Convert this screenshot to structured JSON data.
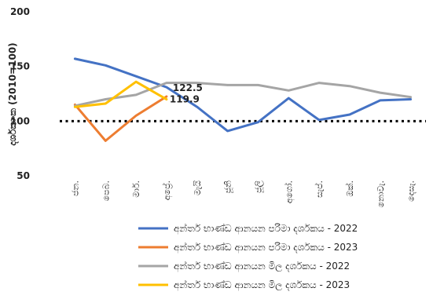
{
  "chart_data": {
    "type": "line",
    "title": "",
    "xlabel": "",
    "ylabel": "දර්ශකාංක (2010=100)",
    "ylim": [
      50,
      200
    ],
    "yticks": [
      50,
      100,
      150,
      200
    ],
    "grid": false,
    "legend_placement": "bottom",
    "categories": [
      "ජන.",
      "පෙබ.",
      "මාර්.",
      "අප්‍රේ.",
      "මැයි",
      "ජූනි",
      "ජූලි",
      "අගෝ.",
      "සැප්.",
      "ඔක්.",
      "නොවැ.",
      "දෙසැ."
    ],
    "series": [
      {
        "name": "අන්තර් භාණ්ඩ ආනයන පරිමා දර්ශකය - 2022",
        "color": "#4472C4",
        "values": [
          157,
          151,
          141,
          131,
          113,
          91,
          99,
          121,
          101,
          106,
          119,
          120
        ]
      },
      {
        "name": "අන්තර් භාණ්ඩ ආනයන පරිමා දර්ශකය - 2023",
        "color": "#ED7D31",
        "values": [
          115,
          82,
          105,
          122.5,
          null,
          null,
          null,
          null,
          null,
          null,
          null,
          null
        ]
      },
      {
        "name": "අන්තර් භාණ්ඩ ආනයන මිල දර්ශකය - 2022",
        "color": "#A5A5A5",
        "values": [
          114,
          120,
          124,
          135,
          135,
          133,
          133,
          128,
          135,
          132,
          126,
          122
        ]
      },
      {
        "name": "අන්තර් භාණ්ඩ ආනයන මිල දර්ශකය - 2023",
        "color": "#FFC000",
        "values": [
          113,
          116,
          136,
          119.9,
          null,
          null,
          null,
          null,
          null,
          null,
          null,
          null
        ]
      }
    ],
    "reference_line": {
      "value": 100,
      "style": "dotted",
      "color": "#000000"
    },
    "annotations": [
      {
        "text": "122.5",
        "series": 1,
        "index": 3
      },
      {
        "text": "119.9",
        "series": 3,
        "index": 3
      }
    ]
  }
}
